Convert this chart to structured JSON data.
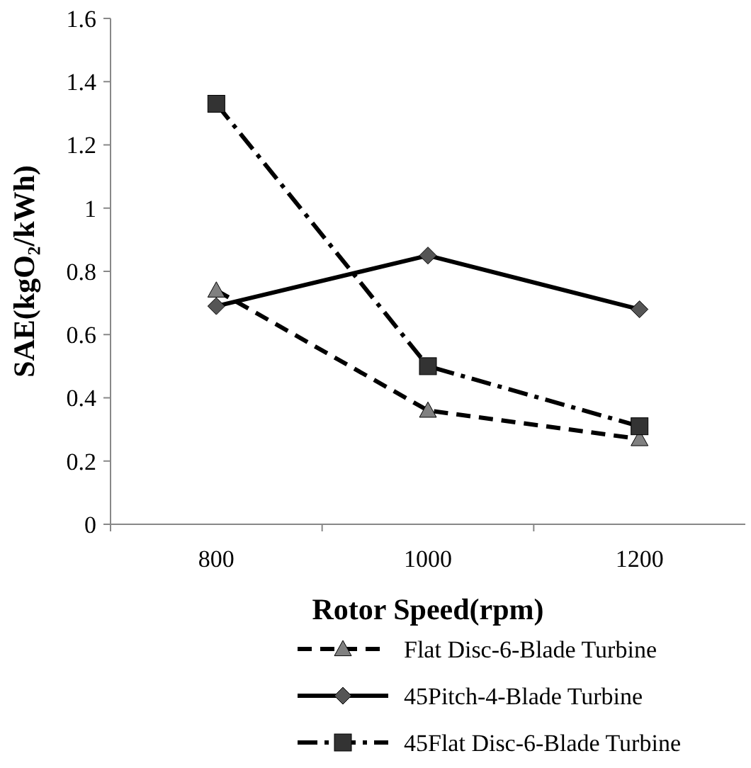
{
  "chart_data": {
    "type": "line",
    "xlabel": "Rotor Speed(rpm)",
    "ylabel": "SAE(kgO₂/kWh)",
    "categories": [
      "800",
      "1000",
      "1200"
    ],
    "ylim": [
      0,
      1.6
    ],
    "yticks": [
      0,
      0.2,
      0.4,
      0.6,
      0.8,
      1,
      1.2,
      1.4,
      1.6
    ],
    "grid": false,
    "legend": "bottom",
    "series": [
      {
        "name": "Flat Disc-6-Blade Turbine",
        "color": "#000000",
        "values": [
          0.74,
          0.36,
          0.27
        ],
        "marker": "triangle",
        "line_style": "dashed"
      },
      {
        "name": "45Pitch-4-Blade Turbine",
        "color": "#000000",
        "values": [
          0.69,
          0.85,
          0.68
        ],
        "marker": "diamond",
        "line_style": "solid"
      },
      {
        "name": "45Flat Disc-6-Blade Turbine",
        "color": "#000000",
        "values": [
          1.33,
          0.5,
          0.31
        ],
        "marker": "square",
        "line_style": "dashdot"
      }
    ]
  }
}
